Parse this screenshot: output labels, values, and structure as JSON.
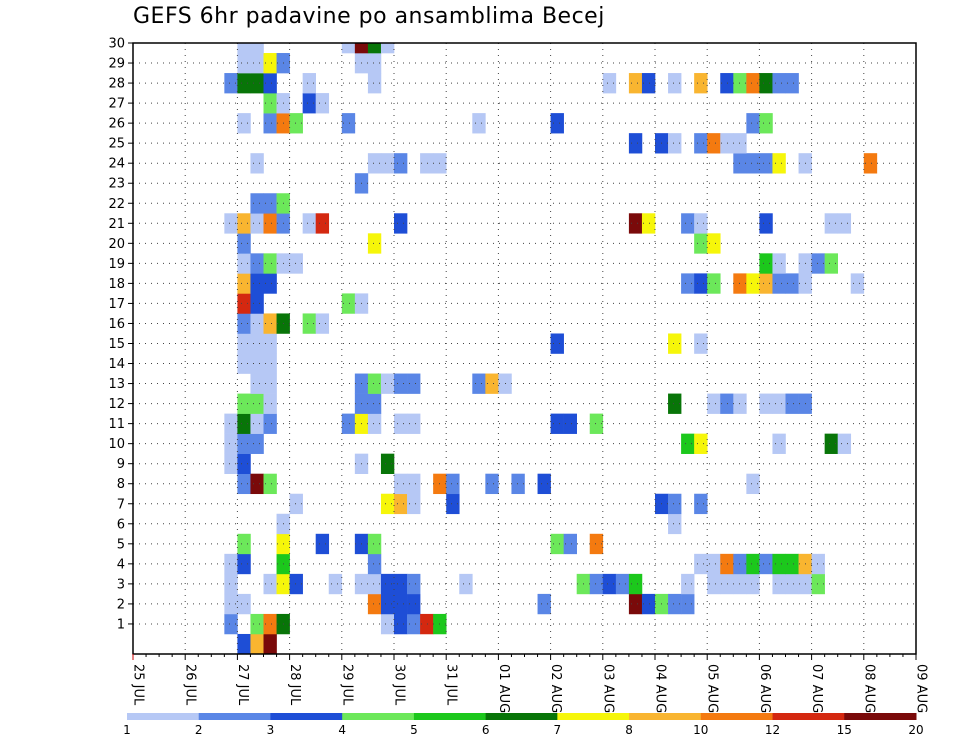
{
  "title": "GEFS 6hr padavine po ansamblima Becej",
  "chart_data": {
    "type": "heatmap",
    "title": "GEFS 6hr padavine po ansamblima Becej",
    "x_tick_labels": [
      "25 JUL",
      "26 JUL",
      "27 JUL",
      "28 JUL",
      "29 JUL",
      "30 JUL",
      "31 JUL",
      "01 AUG",
      "02 AUG",
      "03 AUG",
      "04 AUG",
      "05 AUG",
      "06 AUG",
      "07 AUG",
      "08 AUG",
      "09 AUG"
    ],
    "y_tick_labels": [
      "1",
      "2",
      "3",
      "4",
      "5",
      "6",
      "7",
      "8",
      "9",
      "10",
      "11",
      "12",
      "13",
      "14",
      "15",
      "16",
      "17",
      "18",
      "19",
      "20",
      "21",
      "22",
      "23",
      "24",
      "25",
      "26",
      "27",
      "28",
      "29",
      "30"
    ],
    "ylim": [
      0,
      30
    ],
    "grid": true,
    "colorbar": {
      "thresholds": [
        1,
        2,
        3,
        4,
        5,
        6,
        7,
        8,
        10,
        12,
        15,
        20
      ],
      "labels": [
        "1",
        "2",
        "3",
        "4",
        "5",
        "6",
        "7",
        "8",
        "10",
        "12",
        "15",
        "20"
      ],
      "colors": [
        "#b6c8f5",
        "#5a86e6",
        "#1e4ed6",
        "#6ce85a",
        "#1cc81c",
        "#087508",
        "#f6f60a",
        "#f9b530",
        "#f47a10",
        "#d42810",
        "#7a0a0a"
      ]
    },
    "cells": [
      [
        0,
        27.0,
        3
      ],
      [
        0,
        27.25,
        8
      ],
      [
        0,
        27.5,
        15
      ],
      [
        1,
        26.75,
        2
      ],
      [
        1,
        27.25,
        4
      ],
      [
        1,
        27.5,
        10
      ],
      [
        1,
        27.75,
        6
      ],
      [
        1,
        29.75,
        1
      ],
      [
        1,
        30.0,
        3
      ],
      [
        1,
        30.25,
        2
      ],
      [
        1,
        30.5,
        12
      ],
      [
        1,
        30.75,
        5
      ],
      [
        2,
        26.75,
        1
      ],
      [
        2,
        27.0,
        1
      ],
      [
        2,
        29.5,
        10
      ],
      [
        2,
        29.75,
        3
      ],
      [
        2,
        30.0,
        3
      ],
      [
        2,
        30.25,
        3
      ],
      [
        2,
        32.75,
        2
      ],
      [
        2,
        34.5,
        15
      ],
      [
        2,
        34.75,
        3
      ],
      [
        2,
        35.0,
        4
      ],
      [
        2,
        35.25,
        2
      ],
      [
        2,
        35.5,
        2
      ],
      [
        3,
        26.75,
        1
      ],
      [
        3,
        27.5,
        1
      ],
      [
        3,
        27.75,
        7
      ],
      [
        3,
        28.0,
        3
      ],
      [
        3,
        28.75,
        1
      ],
      [
        3,
        29.25,
        1
      ],
      [
        3,
        29.5,
        1
      ],
      [
        3,
        29.75,
        3
      ],
      [
        3,
        30.0,
        3
      ],
      [
        3,
        30.25,
        2
      ],
      [
        3,
        31.25,
        1
      ],
      [
        3,
        33.5,
        4
      ],
      [
        3,
        33.75,
        2
      ],
      [
        3,
        34.0,
        3
      ],
      [
        3,
        34.25,
        2
      ],
      [
        3,
        34.5,
        5
      ],
      [
        3,
        35.5,
        1
      ],
      [
        3,
        36.0,
        1
      ],
      [
        3,
        36.25,
        1
      ],
      [
        3,
        36.5,
        1
      ],
      [
        3,
        36.75,
        1
      ],
      [
        3,
        37.25,
        1
      ],
      [
        3,
        37.5,
        1
      ],
      [
        3,
        37.75,
        1
      ],
      [
        3,
        38.0,
        4
      ],
      [
        4,
        26.75,
        1
      ],
      [
        4,
        27.0,
        3
      ],
      [
        4,
        27.75,
        5
      ],
      [
        4,
        29.5,
        2
      ],
      [
        4,
        35.75,
        1
      ],
      [
        4,
        36.0,
        1
      ],
      [
        4,
        36.25,
        10
      ],
      [
        4,
        36.5,
        2
      ],
      [
        4,
        36.75,
        5
      ],
      [
        4,
        37.0,
        2
      ],
      [
        4,
        37.25,
        5
      ],
      [
        4,
        37.5,
        5
      ],
      [
        4,
        37.75,
        8
      ],
      [
        4,
        38.0,
        1
      ],
      [
        5,
        27.0,
        4
      ],
      [
        5,
        27.75,
        7
      ],
      [
        5,
        28.5,
        3
      ],
      [
        5,
        29.25,
        3
      ],
      [
        5,
        29.5,
        4
      ],
      [
        5,
        33.0,
        4
      ],
      [
        5,
        33.25,
        2
      ],
      [
        5,
        33.75,
        10
      ],
      [
        6,
        27.75,
        1
      ],
      [
        6,
        35.25,
        1
      ],
      [
        7,
        28.0,
        1
      ],
      [
        7,
        29.75,
        7
      ],
      [
        7,
        30.0,
        8
      ],
      [
        7,
        30.25,
        1
      ],
      [
        7,
        31.0,
        3
      ],
      [
        7,
        35.0,
        3
      ],
      [
        7,
        35.25,
        2
      ],
      [
        7,
        35.75,
        2
      ],
      [
        8,
        27.0,
        2
      ],
      [
        8,
        27.25,
        15
      ],
      [
        8,
        27.5,
        4
      ],
      [
        8,
        30.0,
        1
      ],
      [
        8,
        30.25,
        1
      ],
      [
        8,
        30.75,
        10
      ],
      [
        8,
        31.0,
        2
      ],
      [
        8,
        31.75,
        2
      ],
      [
        8,
        32.25,
        2
      ],
      [
        8,
        32.75,
        3
      ],
      [
        8,
        36.75,
        1
      ],
      [
        9,
        26.75,
        1
      ],
      [
        9,
        27.0,
        3
      ],
      [
        9,
        29.25,
        1
      ],
      [
        9,
        29.75,
        6
      ],
      [
        10,
        26.75,
        1
      ],
      [
        10,
        27.0,
        2
      ],
      [
        10,
        27.25,
        2
      ],
      [
        10,
        35.5,
        5
      ],
      [
        10,
        35.75,
        7
      ],
      [
        10,
        37.25,
        1
      ],
      [
        10,
        38.25,
        6
      ],
      [
        10,
        38.5,
        1
      ],
      [
        11,
        26.75,
        1
      ],
      [
        11,
        27.0,
        6
      ],
      [
        11,
        27.25,
        1
      ],
      [
        11,
        27.5,
        2
      ],
      [
        11,
        29.0,
        2
      ],
      [
        11,
        29.25,
        7
      ],
      [
        11,
        29.5,
        1
      ],
      [
        11,
        30.0,
        1
      ],
      [
        11,
        30.25,
        1
      ],
      [
        11,
        33.0,
        3
      ],
      [
        11,
        33.25,
        3
      ],
      [
        11,
        33.75,
        4
      ],
      [
        12,
        27.0,
        4
      ],
      [
        12,
        27.25,
        4
      ],
      [
        12,
        27.5,
        1
      ],
      [
        12,
        29.25,
        2
      ],
      [
        12,
        29.5,
        2
      ],
      [
        12,
        35.25,
        6
      ],
      [
        12,
        36.0,
        1
      ],
      [
        12,
        36.25,
        2
      ],
      [
        12,
        36.5,
        1
      ],
      [
        12,
        37.0,
        1
      ],
      [
        12,
        37.25,
        1
      ],
      [
        12,
        37.5,
        2
      ],
      [
        12,
        37.75,
        2
      ],
      [
        13,
        27.25,
        1
      ],
      [
        13,
        27.5,
        1
      ],
      [
        13,
        29.25,
        2
      ],
      [
        13,
        29.5,
        4
      ],
      [
        13,
        29.75,
        1
      ],
      [
        13,
        30.0,
        2
      ],
      [
        13,
        30.25,
        2
      ],
      [
        13,
        31.5,
        2
      ],
      [
        13,
        31.75,
        9
      ],
      [
        13,
        32.0,
        1
      ],
      [
        14,
        27.0,
        1
      ],
      [
        14,
        27.25,
        1
      ],
      [
        14,
        27.5,
        1
      ],
      [
        15,
        27.0,
        1
      ],
      [
        15,
        27.25,
        1
      ],
      [
        15,
        27.5,
        1
      ],
      [
        15,
        33.0,
        3
      ],
      [
        15,
        35.25,
        7
      ],
      [
        15,
        35.75,
        1
      ],
      [
        16,
        27.0,
        2
      ],
      [
        16,
        27.25,
        1
      ],
      [
        16,
        27.5,
        9
      ],
      [
        16,
        27.75,
        6
      ],
      [
        16,
        28.25,
        4
      ],
      [
        16,
        28.5,
        1
      ],
      [
        17,
        27.0,
        14
      ],
      [
        17,
        27.25,
        3
      ],
      [
        17,
        29.0,
        4
      ],
      [
        17,
        29.25,
        1
      ],
      [
        18,
        27.0,
        8
      ],
      [
        18,
        27.25,
        3
      ],
      [
        18,
        27.5,
        3
      ],
      [
        18,
        35.5,
        2
      ],
      [
        18,
        35.75,
        3
      ],
      [
        18,
        36.0,
        4
      ],
      [
        18,
        36.5,
        11
      ],
      [
        18,
        36.75,
        7
      ],
      [
        18,
        37.0,
        8
      ],
      [
        18,
        37.25,
        2
      ],
      [
        18,
        37.5,
        2
      ],
      [
        18,
        37.75,
        1
      ],
      [
        18,
        38.75,
        1
      ],
      [
        19,
        27.0,
        1
      ],
      [
        19,
        27.25,
        2
      ],
      [
        19,
        27.5,
        4
      ],
      [
        19,
        27.75,
        1
      ],
      [
        19,
        28.0,
        1
      ],
      [
        19,
        37.0,
        5
      ],
      [
        19,
        37.25,
        1
      ],
      [
        19,
        37.75,
        1
      ],
      [
        19,
        38.0,
        2
      ],
      [
        19,
        38.25,
        4
      ],
      [
        20,
        27.0,
        2
      ],
      [
        20,
        29.5,
        7
      ],
      [
        20,
        35.75,
        4
      ],
      [
        20,
        36.0,
        7
      ],
      [
        21,
        26.75,
        1
      ],
      [
        21,
        27.0,
        8
      ],
      [
        21,
        27.25,
        1
      ],
      [
        21,
        27.5,
        10
      ],
      [
        21,
        27.75,
        2
      ],
      [
        21,
        28.25,
        1
      ],
      [
        21,
        28.5,
        14
      ],
      [
        21,
        30.0,
        3
      ],
      [
        21,
        34.5,
        20
      ],
      [
        21,
        34.75,
        7
      ],
      [
        21,
        35.5,
        2
      ],
      [
        21,
        35.75,
        1
      ],
      [
        21,
        37.0,
        3
      ],
      [
        21,
        38.25,
        1
      ],
      [
        21,
        38.5,
        1
      ],
      [
        22,
        27.25,
        2
      ],
      [
        22,
        27.5,
        2
      ],
      [
        22,
        27.75,
        4
      ],
      [
        23,
        29.25,
        2
      ],
      [
        24,
        27.25,
        1
      ],
      [
        24,
        29.5,
        1
      ],
      [
        24,
        29.75,
        1
      ],
      [
        24,
        30.0,
        2
      ],
      [
        24,
        30.5,
        1
      ],
      [
        24,
        30.75,
        1
      ],
      [
        24,
        36.5,
        2
      ],
      [
        24,
        36.75,
        2
      ],
      [
        24,
        37.0,
        2
      ],
      [
        24,
        37.25,
        7
      ],
      [
        24,
        37.75,
        1
      ],
      [
        24,
        39.0,
        10
      ],
      [
        25,
        34.5,
        3
      ],
      [
        25,
        35.0,
        3
      ],
      [
        25,
        35.25,
        1
      ],
      [
        25,
        35.75,
        2
      ],
      [
        25,
        36.0,
        11
      ],
      [
        25,
        36.25,
        1
      ],
      [
        25,
        36.5,
        1
      ],
      [
        26,
        27.0,
        1
      ],
      [
        26,
        27.5,
        2
      ],
      [
        26,
        27.75,
        11
      ],
      [
        26,
        28.0,
        4
      ],
      [
        26,
        29.0,
        2
      ],
      [
        26,
        31.5,
        1
      ],
      [
        26,
        33.0,
        3
      ],
      [
        26,
        36.75,
        2
      ],
      [
        26,
        37.0,
        4
      ],
      [
        27,
        27.5,
        4
      ],
      [
        27,
        27.75,
        1
      ],
      [
        27,
        28.25,
        3
      ],
      [
        27,
        28.5,
        1
      ],
      [
        28,
        26.75,
        2
      ],
      [
        28,
        27.0,
        6
      ],
      [
        28,
        27.25,
        6
      ],
      [
        28,
        27.5,
        3
      ],
      [
        28,
        28.25,
        1
      ],
      [
        28,
        29.5,
        1
      ],
      [
        28,
        34.0,
        1
      ],
      [
        28,
        34.5,
        9
      ],
      [
        28,
        34.75,
        3
      ],
      [
        28,
        35.25,
        1
      ],
      [
        28,
        35.75,
        9
      ],
      [
        28,
        36.25,
        3
      ],
      [
        28,
        36.5,
        4
      ],
      [
        28,
        36.75,
        11
      ],
      [
        28,
        37.0,
        6
      ],
      [
        28,
        37.25,
        2
      ],
      [
        28,
        37.5,
        2
      ],
      [
        29,
        27.0,
        1
      ],
      [
        29,
        27.25,
        1
      ],
      [
        29,
        27.5,
        7
      ],
      [
        29,
        27.75,
        2
      ],
      [
        29,
        29.25,
        1
      ],
      [
        29,
        29.5,
        1
      ],
      [
        30,
        27.0,
        1
      ],
      [
        30,
        27.25,
        1
      ],
      [
        30,
        29.0,
        1
      ],
      [
        30,
        29.25,
        20
      ],
      [
        30,
        29.5,
        6
      ],
      [
        30,
        29.75,
        1
      ]
    ]
  }
}
